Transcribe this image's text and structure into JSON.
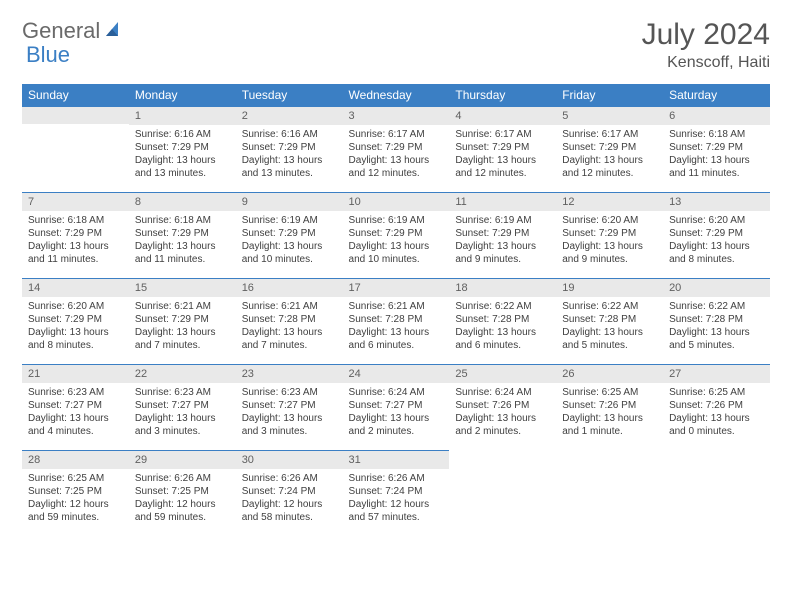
{
  "logo": {
    "part1": "General",
    "part2": "Blue"
  },
  "title": "July 2024",
  "location": "Kenscoff, Haiti",
  "colors": {
    "accent": "#3b7fc4",
    "header_bg": "#e9e9e9",
    "text": "#404040",
    "logo_gray": "#6a6a6a"
  },
  "weekdays": [
    "Sunday",
    "Monday",
    "Tuesday",
    "Wednesday",
    "Thursday",
    "Friday",
    "Saturday"
  ],
  "weeks": [
    [
      null,
      {
        "n": "1",
        "sr": "Sunrise: 6:16 AM",
        "ss": "Sunset: 7:29 PM",
        "dl": "Daylight: 13 hours and 13 minutes."
      },
      {
        "n": "2",
        "sr": "Sunrise: 6:16 AM",
        "ss": "Sunset: 7:29 PM",
        "dl": "Daylight: 13 hours and 13 minutes."
      },
      {
        "n": "3",
        "sr": "Sunrise: 6:17 AM",
        "ss": "Sunset: 7:29 PM",
        "dl": "Daylight: 13 hours and 12 minutes."
      },
      {
        "n": "4",
        "sr": "Sunrise: 6:17 AM",
        "ss": "Sunset: 7:29 PM",
        "dl": "Daylight: 13 hours and 12 minutes."
      },
      {
        "n": "5",
        "sr": "Sunrise: 6:17 AM",
        "ss": "Sunset: 7:29 PM",
        "dl": "Daylight: 13 hours and 12 minutes."
      },
      {
        "n": "6",
        "sr": "Sunrise: 6:18 AM",
        "ss": "Sunset: 7:29 PM",
        "dl": "Daylight: 13 hours and 11 minutes."
      }
    ],
    [
      {
        "n": "7",
        "sr": "Sunrise: 6:18 AM",
        "ss": "Sunset: 7:29 PM",
        "dl": "Daylight: 13 hours and 11 minutes."
      },
      {
        "n": "8",
        "sr": "Sunrise: 6:18 AM",
        "ss": "Sunset: 7:29 PM",
        "dl": "Daylight: 13 hours and 11 minutes."
      },
      {
        "n": "9",
        "sr": "Sunrise: 6:19 AM",
        "ss": "Sunset: 7:29 PM",
        "dl": "Daylight: 13 hours and 10 minutes."
      },
      {
        "n": "10",
        "sr": "Sunrise: 6:19 AM",
        "ss": "Sunset: 7:29 PM",
        "dl": "Daylight: 13 hours and 10 minutes."
      },
      {
        "n": "11",
        "sr": "Sunrise: 6:19 AM",
        "ss": "Sunset: 7:29 PM",
        "dl": "Daylight: 13 hours and 9 minutes."
      },
      {
        "n": "12",
        "sr": "Sunrise: 6:20 AM",
        "ss": "Sunset: 7:29 PM",
        "dl": "Daylight: 13 hours and 9 minutes."
      },
      {
        "n": "13",
        "sr": "Sunrise: 6:20 AM",
        "ss": "Sunset: 7:29 PM",
        "dl": "Daylight: 13 hours and 8 minutes."
      }
    ],
    [
      {
        "n": "14",
        "sr": "Sunrise: 6:20 AM",
        "ss": "Sunset: 7:29 PM",
        "dl": "Daylight: 13 hours and 8 minutes."
      },
      {
        "n": "15",
        "sr": "Sunrise: 6:21 AM",
        "ss": "Sunset: 7:29 PM",
        "dl": "Daylight: 13 hours and 7 minutes."
      },
      {
        "n": "16",
        "sr": "Sunrise: 6:21 AM",
        "ss": "Sunset: 7:28 PM",
        "dl": "Daylight: 13 hours and 7 minutes."
      },
      {
        "n": "17",
        "sr": "Sunrise: 6:21 AM",
        "ss": "Sunset: 7:28 PM",
        "dl": "Daylight: 13 hours and 6 minutes."
      },
      {
        "n": "18",
        "sr": "Sunrise: 6:22 AM",
        "ss": "Sunset: 7:28 PM",
        "dl": "Daylight: 13 hours and 6 minutes."
      },
      {
        "n": "19",
        "sr": "Sunrise: 6:22 AM",
        "ss": "Sunset: 7:28 PM",
        "dl": "Daylight: 13 hours and 5 minutes."
      },
      {
        "n": "20",
        "sr": "Sunrise: 6:22 AM",
        "ss": "Sunset: 7:28 PM",
        "dl": "Daylight: 13 hours and 5 minutes."
      }
    ],
    [
      {
        "n": "21",
        "sr": "Sunrise: 6:23 AM",
        "ss": "Sunset: 7:27 PM",
        "dl": "Daylight: 13 hours and 4 minutes."
      },
      {
        "n": "22",
        "sr": "Sunrise: 6:23 AM",
        "ss": "Sunset: 7:27 PM",
        "dl": "Daylight: 13 hours and 3 minutes."
      },
      {
        "n": "23",
        "sr": "Sunrise: 6:23 AM",
        "ss": "Sunset: 7:27 PM",
        "dl": "Daylight: 13 hours and 3 minutes."
      },
      {
        "n": "24",
        "sr": "Sunrise: 6:24 AM",
        "ss": "Sunset: 7:27 PM",
        "dl": "Daylight: 13 hours and 2 minutes."
      },
      {
        "n": "25",
        "sr": "Sunrise: 6:24 AM",
        "ss": "Sunset: 7:26 PM",
        "dl": "Daylight: 13 hours and 2 minutes."
      },
      {
        "n": "26",
        "sr": "Sunrise: 6:25 AM",
        "ss": "Sunset: 7:26 PM",
        "dl": "Daylight: 13 hours and 1 minute."
      },
      {
        "n": "27",
        "sr": "Sunrise: 6:25 AM",
        "ss": "Sunset: 7:26 PM",
        "dl": "Daylight: 13 hours and 0 minutes."
      }
    ],
    [
      {
        "n": "28",
        "sr": "Sunrise: 6:25 AM",
        "ss": "Sunset: 7:25 PM",
        "dl": "Daylight: 12 hours and 59 minutes."
      },
      {
        "n": "29",
        "sr": "Sunrise: 6:26 AM",
        "ss": "Sunset: 7:25 PM",
        "dl": "Daylight: 12 hours and 59 minutes."
      },
      {
        "n": "30",
        "sr": "Sunrise: 6:26 AM",
        "ss": "Sunset: 7:24 PM",
        "dl": "Daylight: 12 hours and 58 minutes."
      },
      {
        "n": "31",
        "sr": "Sunrise: 6:26 AM",
        "ss": "Sunset: 7:24 PM",
        "dl": "Daylight: 12 hours and 57 minutes."
      },
      null,
      null,
      null
    ]
  ]
}
